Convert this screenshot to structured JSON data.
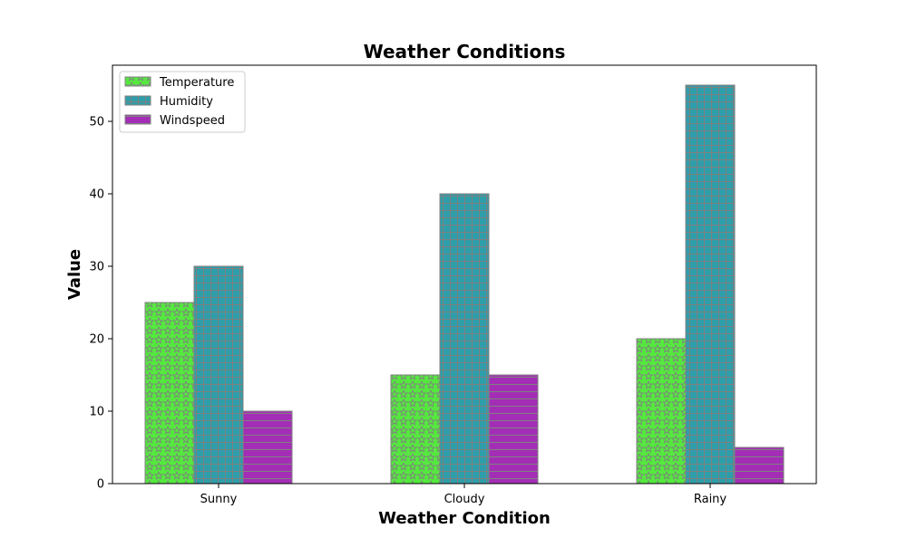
{
  "chart_data": {
    "type": "bar",
    "title": "Weather Conditions",
    "xlabel": "Weather Condition",
    "ylabel": "Value",
    "categories": [
      "Sunny",
      "Cloudy",
      "Rainy"
    ],
    "ylim": [
      0,
      57.75
    ],
    "yticks": [
      0,
      10,
      20,
      30,
      40,
      50
    ],
    "grid": false,
    "legend": "top-left",
    "series": [
      {
        "name": "Temperature",
        "values": [
          25,
          15,
          20
        ],
        "color": "#55e83f",
        "hatch": "stars",
        "hatch_color": "#808080"
      },
      {
        "name": "Humidity",
        "values": [
          30,
          40,
          55
        ],
        "color": "#2e9eaa",
        "hatch": "grid",
        "hatch_color": "#808080"
      },
      {
        "name": "Windspeed",
        "values": [
          10,
          15,
          5
        ],
        "color": "#a32eb5",
        "hatch": "horizontal",
        "hatch_color": "#808080"
      }
    ]
  }
}
